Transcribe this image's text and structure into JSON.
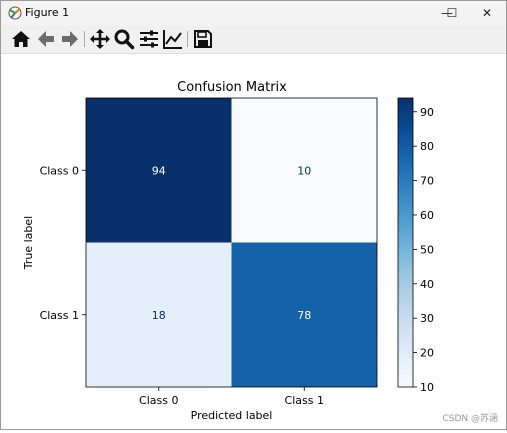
{
  "window": {
    "title": "Figure 1",
    "controls": {
      "minimize": "—",
      "maximize": "☐",
      "close": "✕"
    }
  },
  "toolbar": {
    "tools": [
      {
        "name": "home-icon"
      },
      {
        "name": "back-icon"
      },
      {
        "name": "forward-icon"
      },
      {
        "name": "pan-icon"
      },
      {
        "name": "zoom-icon"
      },
      {
        "name": "subplots-icon"
      },
      {
        "name": "edit-axes-icon"
      },
      {
        "name": "save-icon"
      }
    ]
  },
  "chart_data": {
    "type": "heatmap",
    "title": "Confusion Matrix",
    "xlabel": "Predicted label",
    "ylabel": "True label",
    "x_categories": [
      "Class 0",
      "Class 1"
    ],
    "y_categories": [
      "Class 0",
      "Class 1"
    ],
    "values": [
      [
        94,
        10
      ],
      [
        18,
        78
      ]
    ],
    "colormap": "Blues",
    "colorbar": {
      "min": 10,
      "max": 94,
      "ticks": [
        "10",
        "20",
        "30",
        "40",
        "50",
        "60",
        "70",
        "80",
        "90"
      ]
    },
    "grid": false,
    "text_colors": {
      "dark_cell": "#ffffff",
      "light_cell": "#08306b"
    }
  },
  "watermark": "CSDN @苏涵"
}
